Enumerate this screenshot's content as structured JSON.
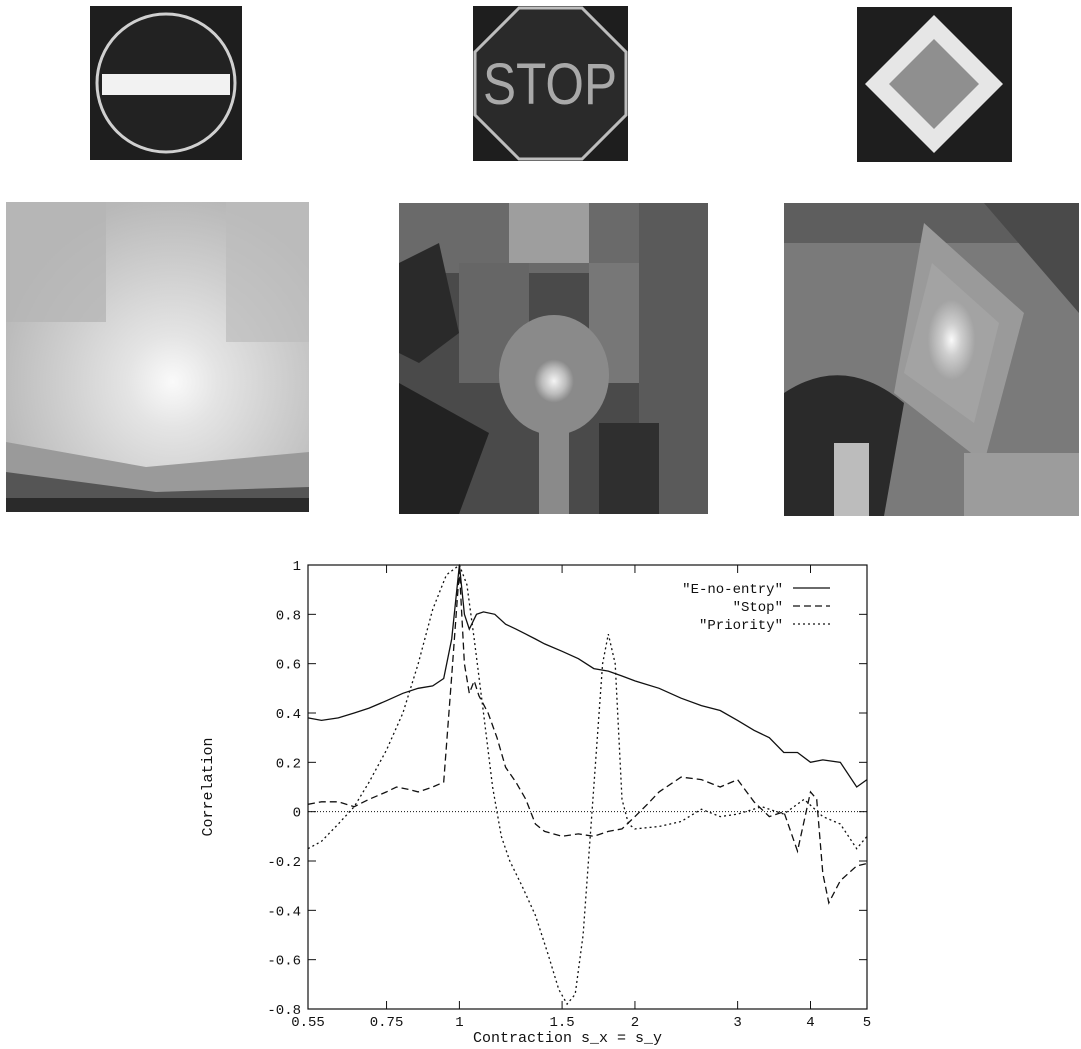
{
  "signs": [
    {
      "name": "no-entry-sign"
    },
    {
      "name": "stop-sign",
      "text": "STOP"
    },
    {
      "name": "priority-sign"
    }
  ],
  "colors": {
    "sign_bg": "#1e1e1e",
    "sign_light": "#e8e8e8",
    "sign_mid": "#9a9a9a"
  },
  "chart_data": {
    "type": "line",
    "xlabel": "Contraction s_x = s_y",
    "ylabel": "Correlation",
    "xscale": "log",
    "xlim": [
      0.55,
      5
    ],
    "ylim": [
      -0.8,
      1
    ],
    "xticks": [
      {
        "v": 0.55,
        "label": "0.55"
      },
      {
        "v": 0.75,
        "label": "0.75"
      },
      {
        "v": 1,
        "label": "1"
      },
      {
        "v": 1.5,
        "label": "1.5"
      },
      {
        "v": 2,
        "label": "2"
      },
      {
        "v": 3,
        "label": "3"
      },
      {
        "v": 4,
        "label": "4"
      },
      {
        "v": 5,
        "label": "5"
      }
    ],
    "yticks": [
      {
        "v": 1,
        "label": "1"
      },
      {
        "v": 0.8,
        "label": "0.8"
      },
      {
        "v": 0.6,
        "label": "0.6"
      },
      {
        "v": 0.4,
        "label": "0.4"
      },
      {
        "v": 0.2,
        "label": "0.2"
      },
      {
        "v": 0,
        "label": "0"
      },
      {
        "v": -0.2,
        "label": "-0.2"
      },
      {
        "v": -0.4,
        "label": "-0.4"
      },
      {
        "v": -0.6,
        "label": "-0.6"
      },
      {
        "v": -0.8,
        "label": "-0.8"
      }
    ],
    "zero_line": true,
    "legend_position": "top-right",
    "series": [
      {
        "name": "\"E-no-entry\"",
        "dash": "",
        "points": [
          [
            0.55,
            0.38
          ],
          [
            0.58,
            0.37
          ],
          [
            0.62,
            0.38
          ],
          [
            0.66,
            0.4
          ],
          [
            0.7,
            0.42
          ],
          [
            0.75,
            0.45
          ],
          [
            0.8,
            0.48
          ],
          [
            0.85,
            0.5
          ],
          [
            0.9,
            0.51
          ],
          [
            0.94,
            0.54
          ],
          [
            0.97,
            0.7
          ],
          [
            1.0,
            1.0
          ],
          [
            1.02,
            0.8
          ],
          [
            1.04,
            0.74
          ],
          [
            1.07,
            0.8
          ],
          [
            1.1,
            0.81
          ],
          [
            1.15,
            0.8
          ],
          [
            1.2,
            0.76
          ],
          [
            1.25,
            0.74
          ],
          [
            1.3,
            0.72
          ],
          [
            1.35,
            0.7
          ],
          [
            1.4,
            0.68
          ],
          [
            1.5,
            0.65
          ],
          [
            1.6,
            0.62
          ],
          [
            1.7,
            0.58
          ],
          [
            1.8,
            0.57
          ],
          [
            1.9,
            0.55
          ],
          [
            2.0,
            0.53
          ],
          [
            2.2,
            0.5
          ],
          [
            2.4,
            0.46
          ],
          [
            2.6,
            0.43
          ],
          [
            2.8,
            0.41
          ],
          [
            3.0,
            0.37
          ],
          [
            3.2,
            0.33
          ],
          [
            3.4,
            0.3
          ],
          [
            3.6,
            0.24
          ],
          [
            3.8,
            0.24
          ],
          [
            4.0,
            0.2
          ],
          [
            4.2,
            0.21
          ],
          [
            4.5,
            0.2
          ],
          [
            4.8,
            0.1
          ],
          [
            5.0,
            0.13
          ]
        ]
      },
      {
        "name": "\"Stop\"",
        "dash": "7,4",
        "points": [
          [
            0.55,
            0.03
          ],
          [
            0.58,
            0.04
          ],
          [
            0.62,
            0.04
          ],
          [
            0.66,
            0.02
          ],
          [
            0.7,
            0.05
          ],
          [
            0.75,
            0.08
          ],
          [
            0.78,
            0.1
          ],
          [
            0.82,
            0.09
          ],
          [
            0.85,
            0.08
          ],
          [
            0.9,
            0.1
          ],
          [
            0.94,
            0.12
          ],
          [
            0.97,
            0.55
          ],
          [
            1.0,
            0.98
          ],
          [
            1.02,
            0.6
          ],
          [
            1.04,
            0.48
          ],
          [
            1.06,
            0.53
          ],
          [
            1.08,
            0.47
          ],
          [
            1.12,
            0.4
          ],
          [
            1.16,
            0.3
          ],
          [
            1.2,
            0.18
          ],
          [
            1.25,
            0.12
          ],
          [
            1.3,
            0.05
          ],
          [
            1.35,
            -0.05
          ],
          [
            1.4,
            -0.08
          ],
          [
            1.5,
            -0.1
          ],
          [
            1.6,
            -0.09
          ],
          [
            1.7,
            -0.1
          ],
          [
            1.8,
            -0.08
          ],
          [
            1.9,
            -0.07
          ],
          [
            2.0,
            -0.02
          ],
          [
            2.1,
            0.03
          ],
          [
            2.2,
            0.08
          ],
          [
            2.4,
            0.14
          ],
          [
            2.6,
            0.13
          ],
          [
            2.8,
            0.1
          ],
          [
            3.0,
            0.13
          ],
          [
            3.2,
            0.04
          ],
          [
            3.4,
            -0.02
          ],
          [
            3.6,
            0.0
          ],
          [
            3.8,
            -0.16
          ],
          [
            4.0,
            0.08
          ],
          [
            4.1,
            0.05
          ],
          [
            4.2,
            -0.25
          ],
          [
            4.3,
            -0.37
          ],
          [
            4.5,
            -0.28
          ],
          [
            4.8,
            -0.22
          ],
          [
            5.0,
            -0.21
          ]
        ]
      },
      {
        "name": "\"Priority\"",
        "dash": "2,3",
        "points": [
          [
            0.55,
            -0.15
          ],
          [
            0.58,
            -0.12
          ],
          [
            0.62,
            -0.05
          ],
          [
            0.66,
            0.02
          ],
          [
            0.7,
            0.12
          ],
          [
            0.75,
            0.25
          ],
          [
            0.8,
            0.4
          ],
          [
            0.85,
            0.6
          ],
          [
            0.9,
            0.82
          ],
          [
            0.95,
            0.96
          ],
          [
            1.0,
            1.0
          ],
          [
            1.03,
            0.92
          ],
          [
            1.06,
            0.7
          ],
          [
            1.1,
            0.4
          ],
          [
            1.14,
            0.1
          ],
          [
            1.18,
            -0.1
          ],
          [
            1.22,
            -0.2
          ],
          [
            1.28,
            -0.3
          ],
          [
            1.35,
            -0.42
          ],
          [
            1.42,
            -0.58
          ],
          [
            1.48,
            -0.72
          ],
          [
            1.53,
            -0.78
          ],
          [
            1.58,
            -0.74
          ],
          [
            1.63,
            -0.5
          ],
          [
            1.7,
            0.1
          ],
          [
            1.76,
            0.6
          ],
          [
            1.8,
            0.72
          ],
          [
            1.85,
            0.6
          ],
          [
            1.9,
            0.05
          ],
          [
            1.95,
            -0.05
          ],
          [
            2.0,
            -0.07
          ],
          [
            2.2,
            -0.06
          ],
          [
            2.4,
            -0.04
          ],
          [
            2.6,
            0.01
          ],
          [
            2.8,
            -0.02
          ],
          [
            3.0,
            -0.01
          ],
          [
            3.3,
            0.02
          ],
          [
            3.6,
            -0.01
          ],
          [
            3.9,
            0.05
          ],
          [
            4.2,
            -0.02
          ],
          [
            4.5,
            -0.05
          ],
          [
            4.8,
            -0.15
          ],
          [
            5.0,
            -0.1
          ]
        ]
      }
    ]
  }
}
